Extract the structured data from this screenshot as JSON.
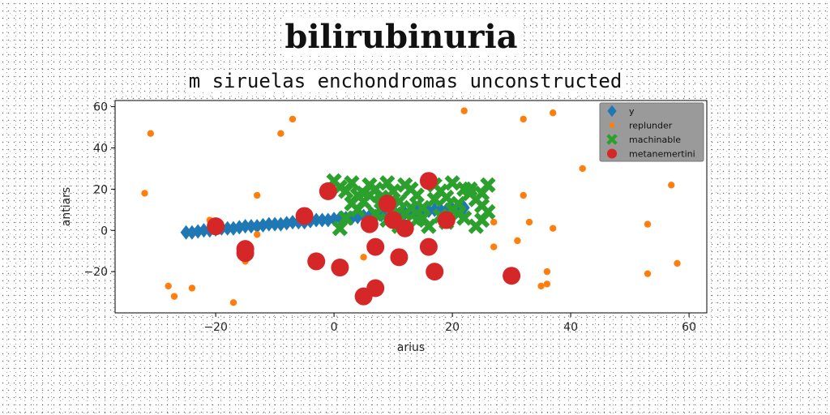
{
  "chart_data": {
    "type": "scatter",
    "title": "bilirubinuria",
    "subtitle": "m siruelas enchondromas unconstructed",
    "xlabel": "arius",
    "ylabel": "antiars",
    "xlim": [
      -37,
      63
    ],
    "ylim": [
      -40,
      63
    ],
    "xticks": [
      -20,
      0,
      20,
      40,
      60
    ],
    "yticks": [
      -20,
      0,
      20,
      40,
      60
    ],
    "grid": false,
    "legend_position": "top-right",
    "series": [
      {
        "name": "y",
        "marker": "diamond",
        "color": "#1f77b4",
        "points": [
          [
            -25,
            -1
          ],
          [
            -24,
            -1
          ],
          [
            -23,
            -0.5
          ],
          [
            -22,
            0
          ],
          [
            -21,
            0
          ],
          [
            -20,
            0.5
          ],
          [
            -19,
            1
          ],
          [
            -18,
            1
          ],
          [
            -17,
            1
          ],
          [
            -16,
            1.5
          ],
          [
            -15,
            2
          ],
          [
            -14,
            2
          ],
          [
            -13,
            2
          ],
          [
            -12,
            2.5
          ],
          [
            -11,
            3
          ],
          [
            -10,
            3
          ],
          [
            -9,
            3
          ],
          [
            -8,
            3.5
          ],
          [
            -7,
            4
          ],
          [
            -6,
            4
          ],
          [
            -5,
            4
          ],
          [
            -4,
            4.5
          ],
          [
            -3,
            5
          ],
          [
            -2,
            5
          ],
          [
            -1,
            5
          ],
          [
            0,
            5.5
          ],
          [
            1,
            6
          ],
          [
            2,
            6
          ],
          [
            3,
            6
          ],
          [
            4,
            6.5
          ],
          [
            5,
            7
          ],
          [
            6,
            7
          ],
          [
            7,
            7
          ],
          [
            8,
            7.5
          ],
          [
            9,
            8
          ],
          [
            10,
            8
          ],
          [
            11,
            8
          ],
          [
            12,
            8.5
          ],
          [
            13,
            9
          ],
          [
            14,
            9
          ],
          [
            15,
            9
          ],
          [
            16,
            9.5
          ],
          [
            17,
            10
          ],
          [
            18,
            10
          ],
          [
            19,
            10
          ],
          [
            20,
            10.5
          ],
          [
            21,
            11
          ],
          [
            22,
            11
          ]
        ]
      },
      {
        "name": "replunder",
        "marker": "circle-small",
        "color": "#ff7f0e",
        "points": [
          [
            -32,
            18
          ],
          [
            -31,
            47
          ],
          [
            -28,
            -27
          ],
          [
            -27,
            -32
          ],
          [
            -24,
            -28
          ],
          [
            -21,
            5
          ],
          [
            -17,
            -35
          ],
          [
            -15,
            -15
          ],
          [
            -13,
            17
          ],
          [
            -9,
            47
          ],
          [
            -7,
            54
          ],
          [
            5,
            -13
          ],
          [
            22,
            58
          ],
          [
            27,
            4
          ],
          [
            27,
            -8
          ],
          [
            31,
            -5
          ],
          [
            32,
            54
          ],
          [
            32,
            17
          ],
          [
            33,
            4
          ],
          [
            35,
            -27
          ],
          [
            36,
            -26
          ],
          [
            36,
            -20
          ],
          [
            37,
            57
          ],
          [
            37,
            1
          ],
          [
            42,
            30
          ],
          [
            53,
            -21
          ],
          [
            53,
            3
          ],
          [
            58,
            -16
          ],
          [
            57,
            22
          ],
          [
            -13,
            -2
          ]
        ]
      },
      {
        "name": "machinable",
        "marker": "x",
        "color": "#2ca02c",
        "points": [
          [
            0,
            24
          ],
          [
            1,
            21
          ],
          [
            2,
            19
          ],
          [
            3,
            23
          ],
          [
            4,
            17
          ],
          [
            5,
            14
          ],
          [
            6,
            22
          ],
          [
            7,
            20
          ],
          [
            8,
            16
          ],
          [
            9,
            23
          ],
          [
            10,
            19
          ],
          [
            11,
            14
          ],
          [
            12,
            22
          ],
          [
            13,
            20
          ],
          [
            14,
            17
          ],
          [
            15,
            11
          ],
          [
            16,
            24
          ],
          [
            17,
            22
          ],
          [
            18,
            19
          ],
          [
            19,
            16
          ],
          [
            20,
            23
          ],
          [
            21,
            13
          ],
          [
            22,
            20
          ],
          [
            23,
            18
          ],
          [
            24,
            15
          ],
          [
            25,
            12
          ],
          [
            26,
            9
          ],
          [
            25,
            5
          ],
          [
            24,
            2
          ],
          [
            22,
            6
          ],
          [
            20,
            10
          ],
          [
            18,
            7
          ],
          [
            16,
            2
          ],
          [
            14,
            5
          ],
          [
            12,
            8
          ],
          [
            10,
            11
          ],
          [
            8,
            14
          ],
          [
            6,
            17
          ],
          [
            4,
            10
          ],
          [
            2,
            6
          ],
          [
            1,
            1
          ],
          [
            3,
            13
          ],
          [
            5,
            18
          ],
          [
            7,
            8
          ],
          [
            9,
            5
          ],
          [
            11,
            2
          ],
          [
            13,
            11
          ],
          [
            15,
            6
          ],
          [
            17,
            15
          ],
          [
            19,
            4
          ],
          [
            21,
            8
          ],
          [
            23,
            20
          ],
          [
            26,
            22
          ],
          [
            25,
            18
          ]
        ]
      },
      {
        "name": "metanemertini",
        "marker": "circle-large",
        "color": "#d62728",
        "points": [
          [
            -20,
            2
          ],
          [
            -15,
            -9
          ],
          [
            -15,
            -11
          ],
          [
            -5,
            7
          ],
          [
            -3,
            -15
          ],
          [
            -1,
            19
          ],
          [
            1,
            -18
          ],
          [
            5,
            -32
          ],
          [
            6,
            3
          ],
          [
            7,
            -8
          ],
          [
            7,
            -28
          ],
          [
            9,
            13
          ],
          [
            10,
            5
          ],
          [
            11,
            -13
          ],
          [
            12,
            1
          ],
          [
            16,
            -8
          ],
          [
            16,
            24
          ],
          [
            17,
            -20
          ],
          [
            19,
            5
          ],
          [
            30,
            -22
          ]
        ]
      }
    ]
  }
}
